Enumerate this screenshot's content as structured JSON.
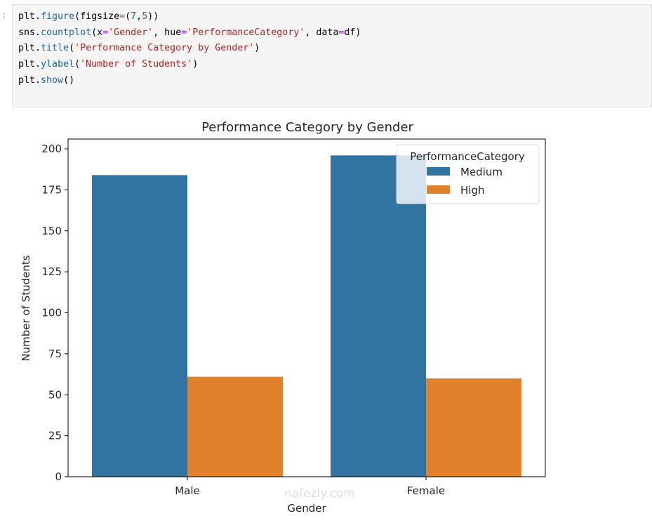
{
  "cell": {
    "prompt": ":",
    "code_lines": [
      [
        {
          "t": "plt."
        },
        {
          "t": "figure",
          "c": "fn"
        },
        {
          "t": "(figsize"
        },
        {
          "t": "=",
          "c": "op"
        },
        {
          "t": "("
        },
        {
          "t": "7",
          "c": "num"
        },
        {
          "t": ","
        },
        {
          "t": "5",
          "c": "num"
        },
        {
          "t": "))"
        }
      ],
      [
        {
          "t": "sns."
        },
        {
          "t": "countplot",
          "c": "fn"
        },
        {
          "t": "(x"
        },
        {
          "t": "=",
          "c": "op"
        },
        {
          "t": "'Gender'",
          "c": "str"
        },
        {
          "t": ", hue"
        },
        {
          "t": "=",
          "c": "op"
        },
        {
          "t": "'PerformanceCategory'",
          "c": "str"
        },
        {
          "t": ", data"
        },
        {
          "t": "=",
          "c": "op"
        },
        {
          "t": "df)"
        }
      ],
      [
        {
          "t": "plt."
        },
        {
          "t": "title",
          "c": "fn"
        },
        {
          "t": "("
        },
        {
          "t": "'Performance Category by Gender'",
          "c": "str"
        },
        {
          "t": ")"
        }
      ],
      [
        {
          "t": "plt."
        },
        {
          "t": "ylabel",
          "c": "fn"
        },
        {
          "t": "("
        },
        {
          "t": "'Number of Students'",
          "c": "str"
        },
        {
          "t": ")"
        }
      ],
      [
        {
          "t": "plt."
        },
        {
          "t": "show",
          "c": "fn"
        },
        {
          "t": "()"
        }
      ]
    ]
  },
  "chart_data": {
    "type": "bar",
    "title": "Performance Category by Gender",
    "xlabel": "Gender",
    "ylabel": "Number of Students",
    "categories": [
      "Male",
      "Female"
    ],
    "series": [
      {
        "name": "Medium",
        "values": [
          184,
          196
        ],
        "color": "#3274a1"
      },
      {
        "name": "High",
        "values": [
          61,
          60
        ],
        "color": "#e1812c"
      }
    ],
    "ylim": [
      0,
      200
    ],
    "yticks": [
      0,
      25,
      50,
      75,
      100,
      125,
      150,
      175,
      200
    ],
    "legend": {
      "title": "PerformanceCategory",
      "placement": "top-right"
    },
    "grid": false
  },
  "watermark": "nafezly.com"
}
